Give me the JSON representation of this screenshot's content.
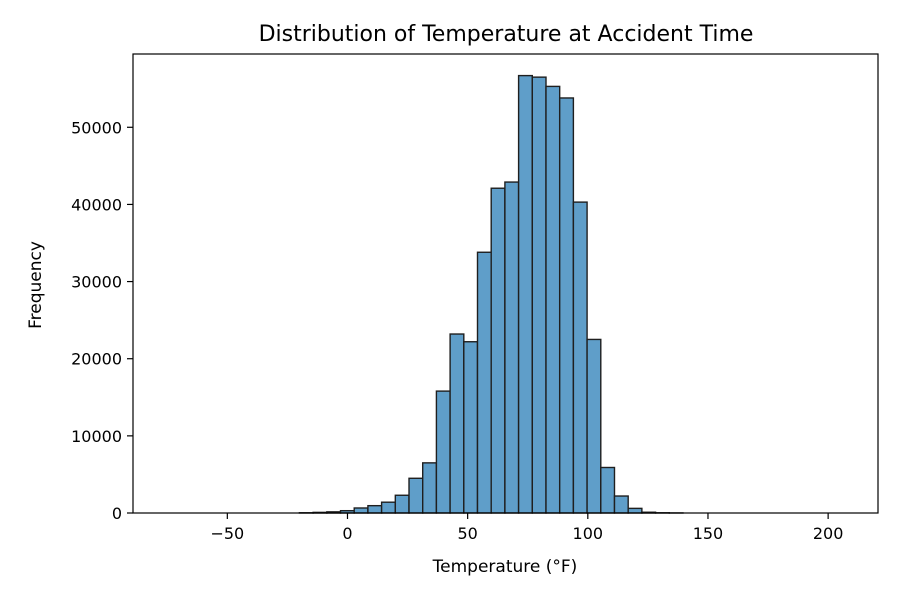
{
  "chart_data": {
    "type": "bar",
    "subtype": "histogram",
    "title": "Distribution of Temperature at Accident Time",
    "xlabel": "Temperature (°F)",
    "ylabel": "Frequency",
    "xlim": [
      -89.25,
      220.75
    ],
    "ylim": [
      0,
      59500
    ],
    "xticks": [
      -50,
      0,
      50,
      100,
      150,
      200
    ],
    "xtick_labels": [
      "−50",
      "0",
      "50",
      "100",
      "150",
      "200"
    ],
    "yticks": [
      0,
      10000,
      20000,
      30000,
      40000,
      50000
    ],
    "ytick_labels": [
      "0",
      "10000",
      "20000",
      "30000",
      "40000",
      "50000"
    ],
    "bin_width": 5.7,
    "bins_start": -77.0,
    "values": [
      0,
      0,
      0,
      0,
      0,
      0,
      0,
      0,
      0,
      0,
      30,
      80,
      150,
      300,
      650,
      950,
      1400,
      2300,
      4500,
      6500,
      15800,
      23200,
      22200,
      33800,
      42100,
      42900,
      56700,
      56500,
      55300,
      53800,
      40300,
      22500,
      5900,
      2200,
      600,
      100,
      30,
      10,
      0,
      0,
      0,
      0,
      0,
      0,
      0,
      0,
      0,
      0,
      0,
      0
    ],
    "bar_color": "#5f9ec9",
    "edge_color": "#1f1f1f",
    "grid": false,
    "legend": "none"
  }
}
